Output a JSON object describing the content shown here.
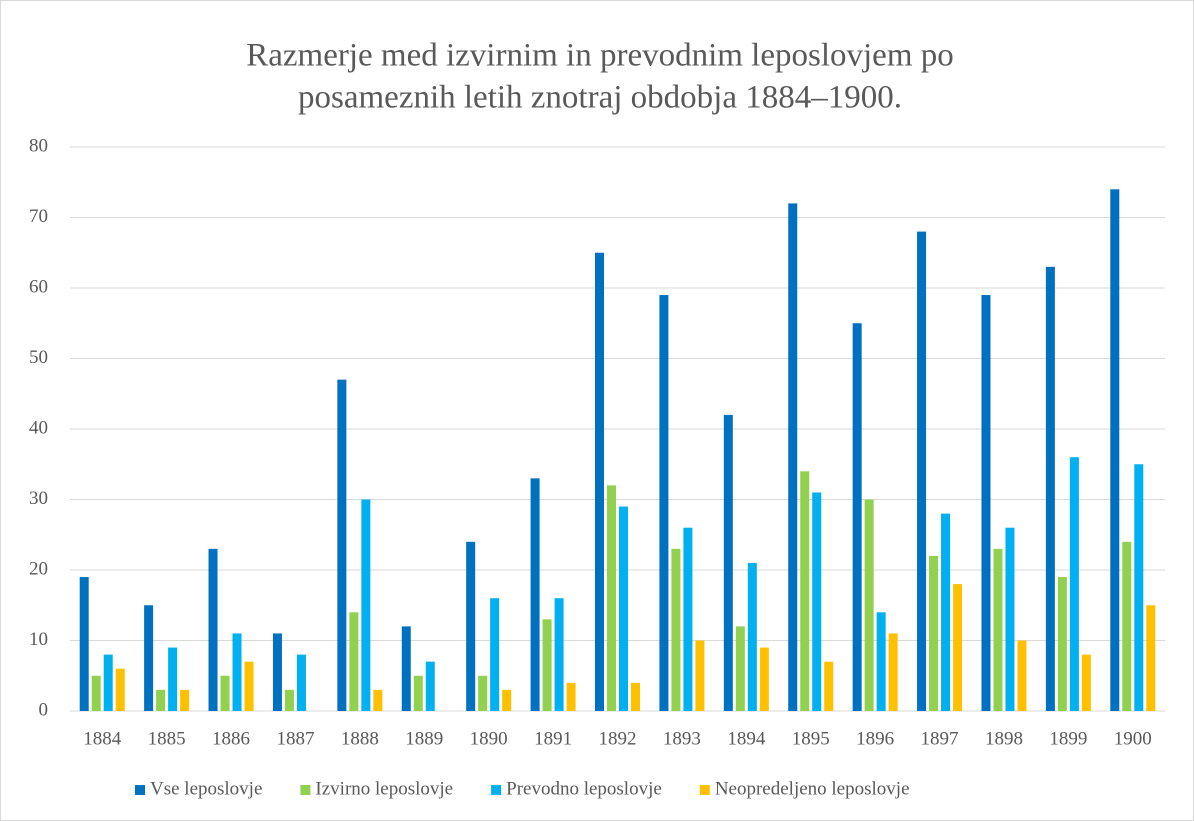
{
  "chart_data": {
    "type": "bar",
    "title_lines": [
      "Razmerje med izvirnim in prevodnim leposlovjem po",
      "posameznih letih znotraj obdobja 1884–1900."
    ],
    "categories": [
      "1884",
      "1885",
      "1886",
      "1887",
      "1888",
      "1889",
      "1890",
      "1891",
      "1892",
      "1893",
      "1894",
      "1895",
      "1896",
      "1897",
      "1898",
      "1899",
      "1900"
    ],
    "series": [
      {
        "name": "Vse leposlovje",
        "color": "#0070c0",
        "values": [
          19,
          15,
          23,
          11,
          47,
          12,
          24,
          33,
          65,
          59,
          42,
          72,
          55,
          68,
          59,
          63,
          74
        ]
      },
      {
        "name": "Izvirno leposlovje",
        "color": "#92d050",
        "values": [
          5,
          3,
          5,
          3,
          14,
          5,
          5,
          13,
          32,
          23,
          12,
          34,
          30,
          22,
          23,
          19,
          24
        ]
      },
      {
        "name": "Prevodno leposlovje",
        "color": "#00b0f0",
        "values": [
          8,
          9,
          11,
          8,
          30,
          7,
          16,
          16,
          29,
          26,
          21,
          31,
          14,
          28,
          26,
          36,
          35
        ]
      },
      {
        "name": "Neopredeljeno leposlovje",
        "color": "#ffc000",
        "values": [
          6,
          3,
          7,
          0,
          3,
          0,
          3,
          4,
          4,
          10,
          9,
          7,
          11,
          18,
          10,
          8,
          15
        ]
      }
    ],
    "ylim": [
      0,
      80
    ],
    "yticks": [
      0,
      10,
      20,
      30,
      40,
      50,
      60,
      70,
      80
    ],
    "grid": true,
    "legend": "bottom"
  }
}
